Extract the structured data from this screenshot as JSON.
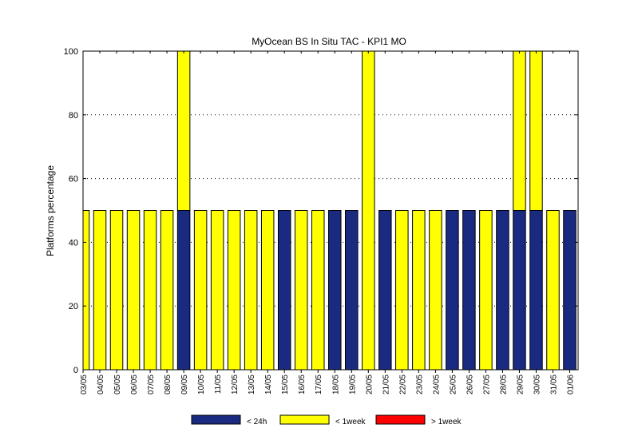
{
  "chart_data": {
    "type": "bar",
    "stacked": true,
    "title": "MyOcean  BS In Situ TAC - KPI1  MO",
    "xlabel": "",
    "ylabel": "Platforms percentage",
    "ylim": [
      0,
      100
    ],
    "yticks": [
      0,
      20,
      40,
      60,
      80,
      100
    ],
    "grid": "horizontal dotted",
    "legend_position": "bottom",
    "categories": [
      "03/05",
      "04/05",
      "05/05",
      "06/05",
      "07/05",
      "08/05",
      "09/05",
      "10/05",
      "11/05",
      "12/05",
      "13/05",
      "14/05",
      "15/05",
      "16/05",
      "17/05",
      "18/05",
      "19/05",
      "20/05",
      "21/05",
      "22/05",
      "23/05",
      "24/05",
      "25/05",
      "26/05",
      "27/05",
      "28/05",
      "29/05",
      "30/05",
      "31/05",
      "01/06"
    ],
    "series": [
      {
        "name": "< 24h",
        "color": "#1a2a80",
        "values": [
          0,
          0,
          0,
          0,
          0,
          0,
          50,
          0,
          0,
          0,
          0,
          0,
          50,
          0,
          0,
          50,
          50,
          0,
          50,
          0,
          0,
          0,
          50,
          50,
          0,
          50,
          50,
          50,
          0,
          50
        ]
      },
      {
        "name": "< 1week",
        "color": "#ffff00",
        "values": [
          50,
          50,
          50,
          50,
          50,
          50,
          50,
          50,
          50,
          50,
          50,
          50,
          0,
          50,
          50,
          0,
          0,
          100,
          0,
          50,
          50,
          50,
          0,
          0,
          50,
          0,
          50,
          50,
          50,
          0
        ]
      },
      {
        "name": "> 1week",
        "color": "#ff0000",
        "values": [
          0,
          0,
          0,
          0,
          0,
          0,
          0,
          0,
          0,
          0,
          0,
          0,
          0,
          0,
          0,
          0,
          0,
          0,
          0,
          0,
          0,
          0,
          0,
          0,
          0,
          0,
          0,
          0,
          0,
          0
        ]
      }
    ]
  }
}
